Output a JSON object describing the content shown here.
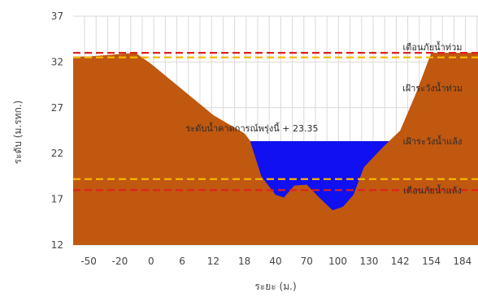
{
  "chart_data": {
    "type": "area",
    "title": "",
    "xlabel": "ระยะ (ม.)",
    "ylabel": "ระดับ (ม.รทก.)",
    "ylim": [
      12,
      37
    ],
    "y_ticks": [
      12,
      17,
      22,
      27,
      32,
      37
    ],
    "x_categories": [
      "-50",
      "-20",
      "0",
      "6",
      "12",
      "18",
      "40",
      "70",
      "100",
      "130",
      "142",
      "154",
      "184"
    ],
    "grid": "on",
    "colors": {
      "ground": "#c0580f",
      "water": "#1010f0",
      "danger": "#e02020",
      "warning": "#f5b800"
    },
    "cross_section": {
      "name": "ground",
      "points": [
        [
          -50,
          32.6
        ],
        [
          -10,
          33.0
        ],
        [
          0,
          31.8
        ],
        [
          6,
          29.0
        ],
        [
          12,
          26.2
        ],
        [
          18,
          24.2
        ],
        [
          22,
          23.4
        ],
        [
          30,
          19.5
        ],
        [
          40,
          17.5
        ],
        [
          48,
          17.2
        ],
        [
          58,
          18.5
        ],
        [
          70,
          18.6
        ],
        [
          82,
          17.2
        ],
        [
          95,
          15.8
        ],
        [
          105,
          16.2
        ],
        [
          115,
          17.5
        ],
        [
          125,
          20.5
        ],
        [
          135,
          22.6
        ],
        [
          142,
          24.5
        ],
        [
          148,
          28.5
        ],
        [
          154,
          33.0
        ],
        [
          184,
          33.0
        ]
      ]
    },
    "water_level": {
      "value": 23.35,
      "label": "ระดับน้ำคาดการณ์พรุ่งนี้ + 23.35"
    },
    "reference_lines": [
      {
        "value": 33.0,
        "color": "danger",
        "label": "เตือนภัยน้ำท่วม"
      },
      {
        "value": 32.5,
        "color": "warning",
        "label": "เฝ้าระวังน้ำท่วม"
      },
      {
        "value": 19.2,
        "color": "warning",
        "label": "เฝ้าระวังน้ำแล้ง"
      },
      {
        "value": 18.0,
        "color": "danger",
        "label": "เตือนภัยน้ำแล้ง"
      }
    ]
  }
}
